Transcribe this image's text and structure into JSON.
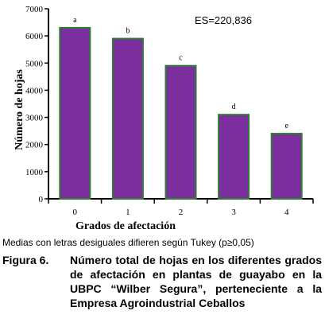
{
  "chart_data": {
    "type": "bar",
    "categories": [
      "0",
      "1",
      "2",
      "3",
      "4"
    ],
    "values": [
      6300,
      5900,
      4900,
      3100,
      2400
    ],
    "bar_labels": [
      "a",
      "b",
      "c",
      "d",
      "e"
    ],
    "xlabel": "Grados de afectación",
    "ylabel": "Número de hojas",
    "ylim": [
      0,
      7000
    ],
    "yticks": [
      0,
      1000,
      2000,
      3000,
      4000,
      5000,
      6000,
      7000
    ],
    "annotation": "ES=220,836",
    "grid": false,
    "colors": {
      "bar_fill": "#7b2f9e",
      "bar_edge": "#2e7d32"
    }
  },
  "note": "Medias con letras desiguales difieren según Tukey (p≥0,05)",
  "caption": {
    "label": "Figura 6.",
    "text": "Número total de hojas en los diferentes grados de afectación en plantas de guayabo en la UBPC “Wilber Segura”, perteneciente a la Empresa Agroindustrial Ceballos"
  }
}
